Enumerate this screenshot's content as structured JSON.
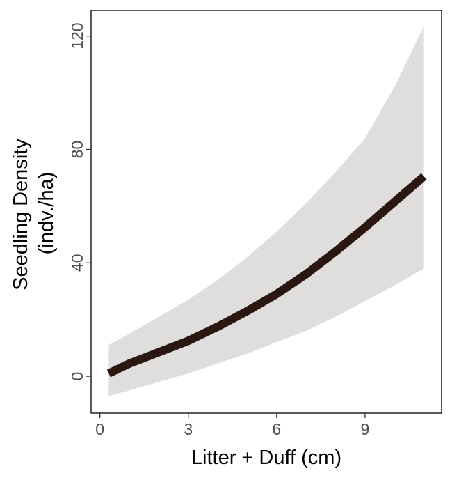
{
  "chart_data": {
    "type": "line",
    "title": "",
    "xlabel": "Litter + Duff (cm)",
    "ylabel_line1": "Seedling Density",
    "ylabel_line2": "(indv./ha)",
    "xlim": [
      -0.3,
      11.6
    ],
    "ylim": [
      -13,
      129
    ],
    "x_ticks": [
      0,
      3,
      6,
      9
    ],
    "x_tick_labels": [
      "0",
      "3",
      "6",
      "9"
    ],
    "y_ticks": [
      0,
      40,
      80,
      120
    ],
    "y_tick_labels": [
      "0",
      "40",
      "80",
      "120"
    ],
    "grid": false,
    "legend": "none",
    "series": [
      {
        "x": [
          0.3,
          1,
          2,
          3,
          4,
          5,
          6,
          7,
          8,
          9,
          10,
          11
        ],
        "values": [
          1,
          4.5,
          8.5,
          12.5,
          17.5,
          23,
          29,
          36,
          44,
          52.5,
          61.5,
          70.5
        ],
        "ci_lower": [
          -7,
          -5,
          -2,
          1,
          4.5,
          8,
          12,
          16,
          21,
          26.5,
          32,
          38
        ],
        "ci_upper": [
          11,
          15,
          21,
          27,
          34,
          42,
          51,
          61,
          72,
          84,
          102,
          123.5
        ],
        "line_color": "#2b1712",
        "ribbon_color": "#e0dddd"
      }
    ]
  }
}
